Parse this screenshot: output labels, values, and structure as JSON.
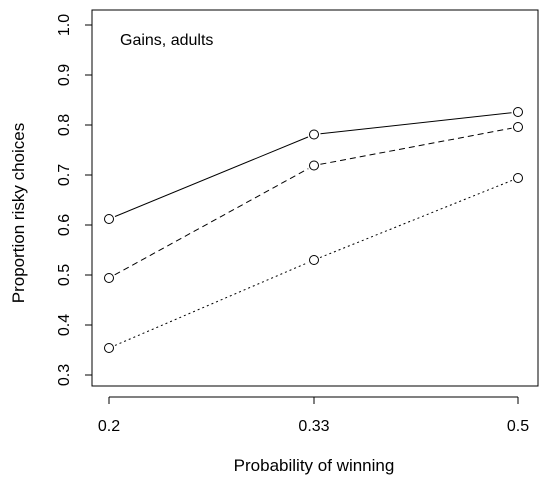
{
  "chart_data": {
    "type": "line",
    "title": "",
    "annotation": "Gains, adults",
    "xlabel": "Probability of winning",
    "ylabel": "Proportion risky choices",
    "x_categories": [
      "0.2",
      "0.33",
      "0.5"
    ],
    "y_ticks": [
      "0.3",
      "0.4",
      "0.5",
      "0.6",
      "0.7",
      "0.8",
      "0.9",
      "1.0"
    ],
    "ylim": [
      0.27,
      1.03
    ],
    "grid": false,
    "series": [
      {
        "line_style": "solid",
        "values": [
          0.612,
          0.781,
          0.826
        ]
      },
      {
        "line_style": "dashed",
        "values": [
          0.494,
          0.719,
          0.796
        ]
      },
      {
        "line_style": "dotted",
        "values": [
          0.354,
          0.53,
          0.694
        ]
      }
    ]
  }
}
